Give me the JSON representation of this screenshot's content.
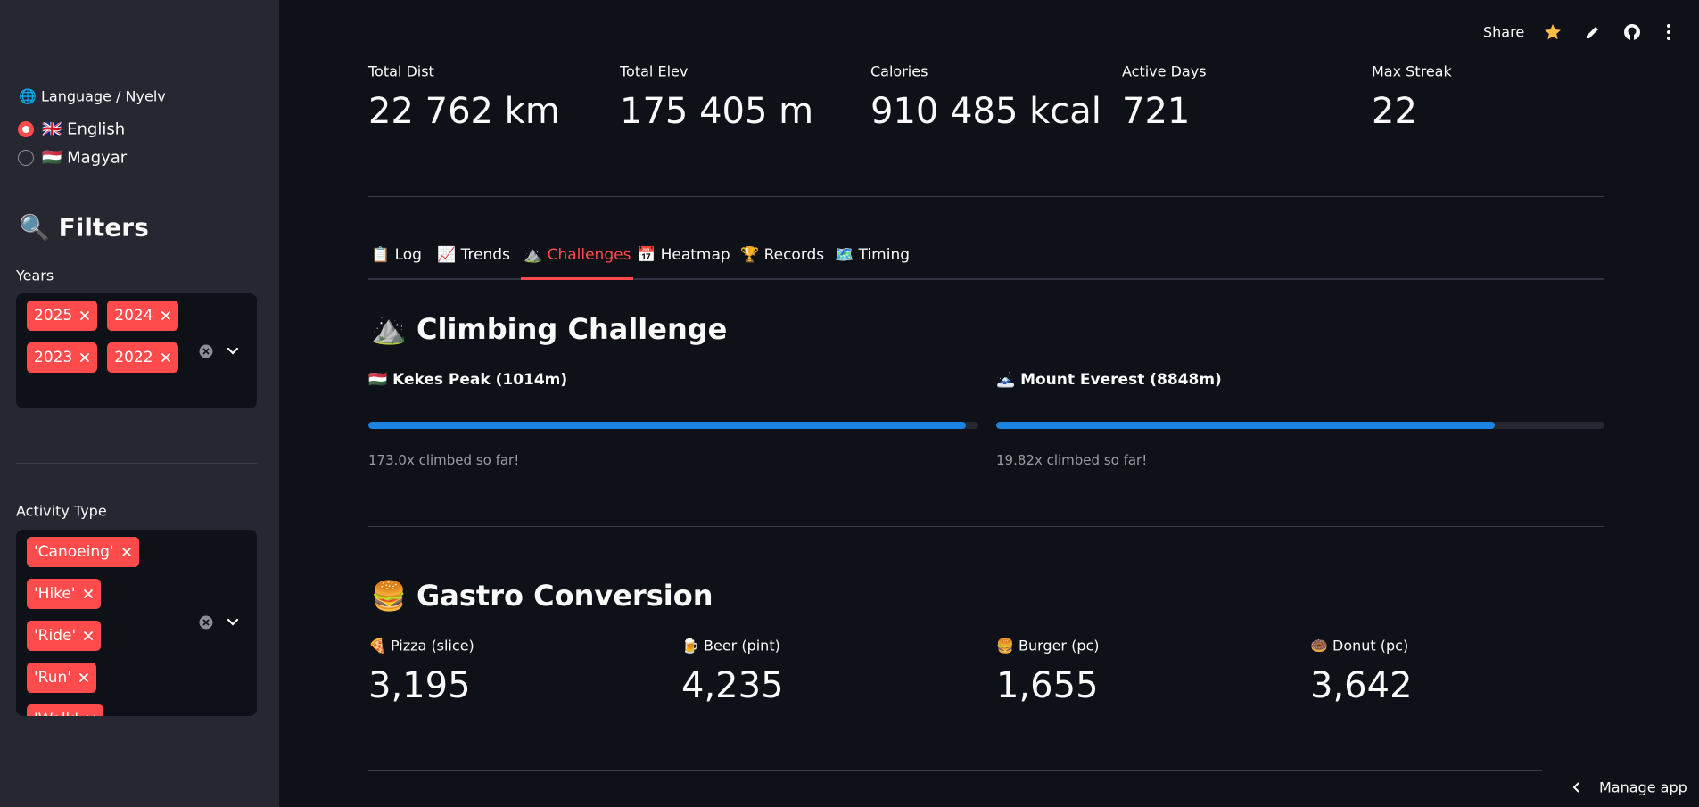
{
  "header": {
    "share": "Share",
    "manage_app": "Manage app"
  },
  "sidebar": {
    "language": {
      "label": "🌐 Language / Nyelv",
      "options": [
        "🇬🇧 English",
        "🇭🇺 Magyar"
      ],
      "selected": 0
    },
    "filters_title": "🔍 Filters",
    "years": {
      "label": "Years",
      "selected": [
        "2025",
        "2024",
        "2023",
        "2022"
      ]
    },
    "activity_type": {
      "label": "Activity Type",
      "selected": [
        "'Canoeing'",
        "'Hike'",
        "'Ride'",
        "'Run'",
        "'Walk'"
      ]
    }
  },
  "metrics": [
    {
      "label": "Total Dist",
      "value": "22 762 km"
    },
    {
      "label": "Total Elev",
      "value": "175 405 m"
    },
    {
      "label": "Calories",
      "value": "910 485 kcal"
    },
    {
      "label": "Active Days",
      "value": "721"
    },
    {
      "label": "Max Streak",
      "value": "22"
    }
  ],
  "tabs": {
    "items": [
      "📋 Log",
      "📈 Trends",
      "⛰️ Challenges",
      "📅 Heatmap",
      "🏆 Records",
      "🗺️ Timing"
    ],
    "active": 2
  },
  "climbing": {
    "title": "⛰️ Climbing Challenge",
    "peaks": [
      {
        "name": "🇭🇺 Kekes Peak (1014m)",
        "progress": 0.98,
        "caption": "173.0x climbed so far!"
      },
      {
        "name": "🗻 Mount Everest (8848m)",
        "progress": 0.82,
        "caption": "19.82x climbed so far!"
      }
    ]
  },
  "gastro": {
    "title": "🍔 Gastro Conversion",
    "items": [
      {
        "label": "🍕 Pizza (slice)",
        "value": "3,195"
      },
      {
        "label": "🍺 Beer (pint)",
        "value": "4,235"
      },
      {
        "label": "🍔 Burger (pc)",
        "value": "1,655"
      },
      {
        "label": "🍩 Donut (pc)",
        "value": "3,642"
      }
    ]
  }
}
